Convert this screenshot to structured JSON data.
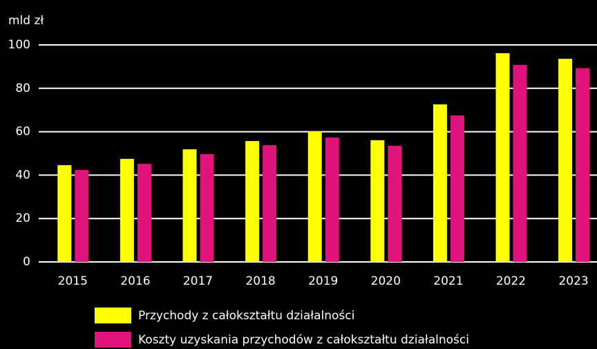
{
  "chart_data": {
    "type": "bar",
    "y_label": "mld zł",
    "categories": [
      "2015",
      "2016",
      "2017",
      "2018",
      "2019",
      "2020",
      "2021",
      "2022",
      "2023"
    ],
    "series": [
      {
        "name": "Przychody z całokształtu działalności",
        "color": "#ffff00",
        "values": [
          44.6,
          47.5,
          51.9,
          55.7,
          60.2,
          56.1,
          72.6,
          96.2,
          93.6
        ]
      },
      {
        "name": "Koszty uzyskania przychodów z całokształtu działalności",
        "color": "#e0147a",
        "values": [
          42.4,
          45.2,
          49.7,
          53.8,
          57.3,
          53.5,
          67.5,
          90.8,
          89.3
        ]
      }
    ],
    "ylim": [
      0,
      100
    ],
    "yticks": [
      0,
      20,
      40,
      60,
      80,
      100
    ],
    "grid": true
  }
}
